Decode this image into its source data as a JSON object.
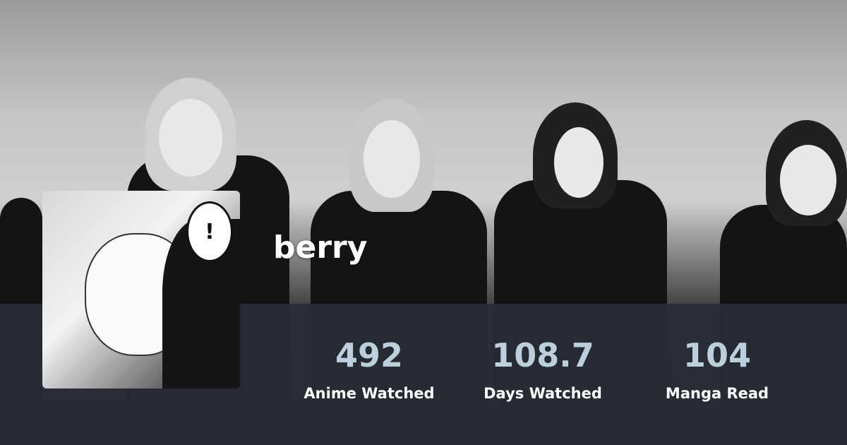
{
  "user": {
    "name": "berry"
  },
  "stats": [
    {
      "value": "492",
      "label": "Anime Watched"
    },
    {
      "value": "108.7",
      "label": "Days Watched"
    },
    {
      "value": "104",
      "label": "Manga Read"
    }
  ],
  "colors": {
    "stat_value": "#bcd0dc",
    "band": "#282c36",
    "label": "#ffffff"
  }
}
